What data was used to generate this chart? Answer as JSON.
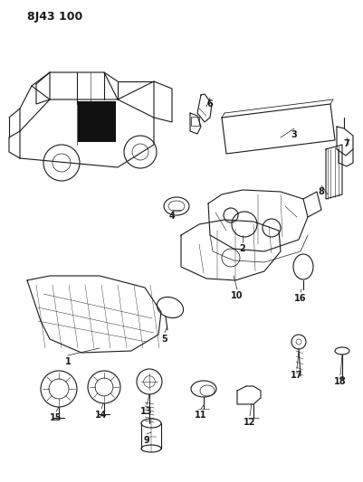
{
  "title": "8J43 100",
  "background_color": "#ffffff",
  "line_color": "#1a1a1a",
  "fig_width": 4.01,
  "fig_height": 5.33,
  "dpi": 100
}
